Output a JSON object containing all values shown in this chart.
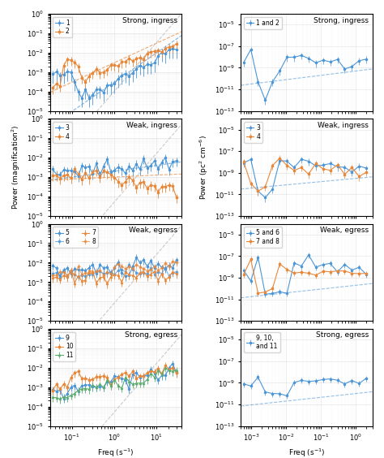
{
  "panel_titles_left": [
    "Strong, ingress",
    "Weak, ingress",
    "Weak, egress",
    "Strong, egress"
  ],
  "panel_titles_right": [
    "Strong, ingress",
    "Weak, ingress",
    "Weak, egress",
    "Strong, egress"
  ],
  "ylabel_left": "Power (magnification$^2$)",
  "ylabel_right": "Power (pc$^2$ cm$^{-6}$)",
  "xlabel_left": "Freq (s$^{-1}$)",
  "xlabel_right": "Freq (s$^{-1}$)",
  "xlim_left": [
    0.03,
    40
  ],
  "ylim_left": [
    1e-05,
    1
  ],
  "xlim_right": [
    0.0005,
    3
  ],
  "ylim_right": [
    1e-13,
    0.0001
  ],
  "color_blue": "#4C96D7",
  "color_orange": "#E8883A",
  "color_green": "#5BAD6F",
  "color_red": "#E05C5C",
  "color_purple": "#9467bd",
  "color_brown": "#8c564b",
  "color_dashed": "#C8C8C8"
}
